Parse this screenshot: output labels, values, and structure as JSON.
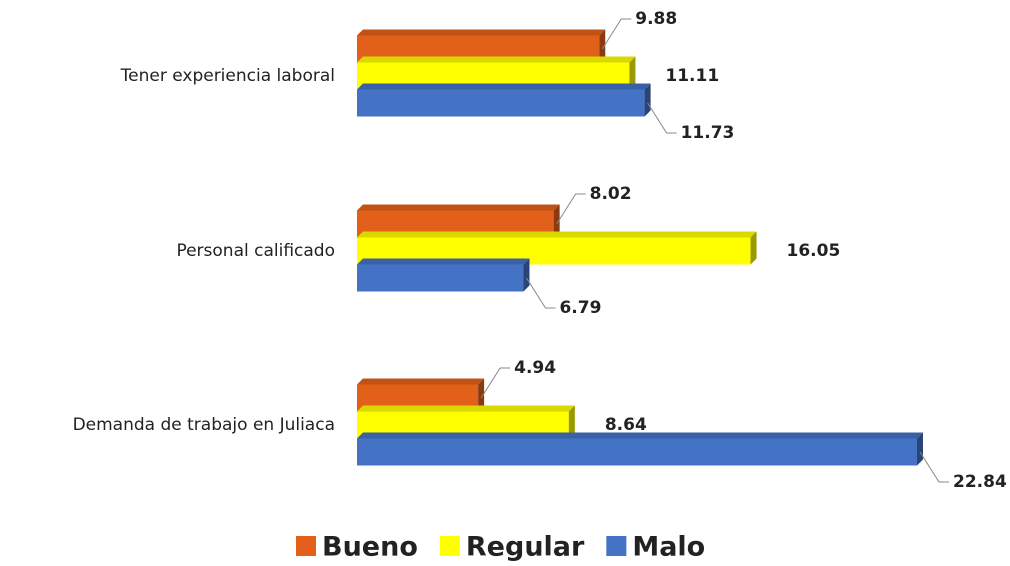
{
  "chart_data": {
    "type": "bar",
    "orientation": "horizontal",
    "categories": [
      "Tener experiencia laboral",
      "Personal calificado",
      "Demanda de trabajo en Juliaca"
    ],
    "series": [
      {
        "name": "Bueno",
        "color": "#e2601a",
        "values": [
          9.88,
          8.02,
          4.94
        ]
      },
      {
        "name": "Regular",
        "color": "#ffff00",
        "values": [
          11.11,
          16.05,
          8.64
        ]
      },
      {
        "name": "Malo",
        "color": "#4472c4",
        "values": [
          11.73,
          6.79,
          22.84
        ]
      }
    ],
    "legend": "bottom"
  }
}
